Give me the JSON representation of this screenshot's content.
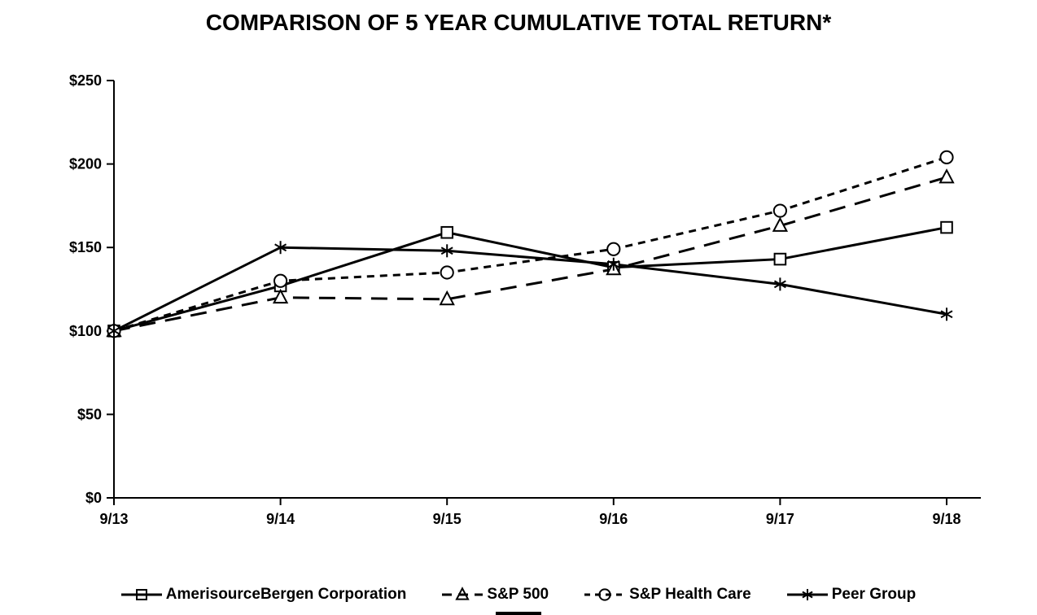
{
  "chart_data": {
    "type": "line",
    "title": "COMPARISON OF 5 YEAR CUMULATIVE TOTAL RETURN*",
    "categories": [
      "9/13",
      "9/14",
      "9/15",
      "9/16",
      "9/17",
      "9/18"
    ],
    "series": [
      {
        "name": "AmerisourceBergen Corporation",
        "marker": "square",
        "dash": "solid",
        "values": [
          100,
          127,
          159,
          138,
          143,
          162
        ]
      },
      {
        "name": "S&P 500",
        "marker": "triangle",
        "dash": "long-dash",
        "values": [
          100,
          120,
          119,
          137,
          163,
          192
        ]
      },
      {
        "name": "S&P Health Care",
        "marker": "circle",
        "dash": "dash",
        "values": [
          100,
          130,
          135,
          149,
          172,
          204
        ]
      },
      {
        "name": "Peer Group",
        "marker": "asterisk",
        "dash": "solid",
        "values": [
          100,
          150,
          148,
          140,
          128,
          110
        ]
      }
    ],
    "ylim": [
      0,
      250
    ],
    "y_ticks": [
      0,
      50,
      100,
      150,
      200,
      250
    ],
    "y_tick_labels": [
      "$0",
      "$50",
      "$100",
      "$150",
      "$200",
      "$250"
    ],
    "xlabel": "",
    "ylabel": "",
    "grid": false,
    "legend_position": "bottom",
    "line_color": "#000000",
    "background_color": "#ffffff"
  }
}
